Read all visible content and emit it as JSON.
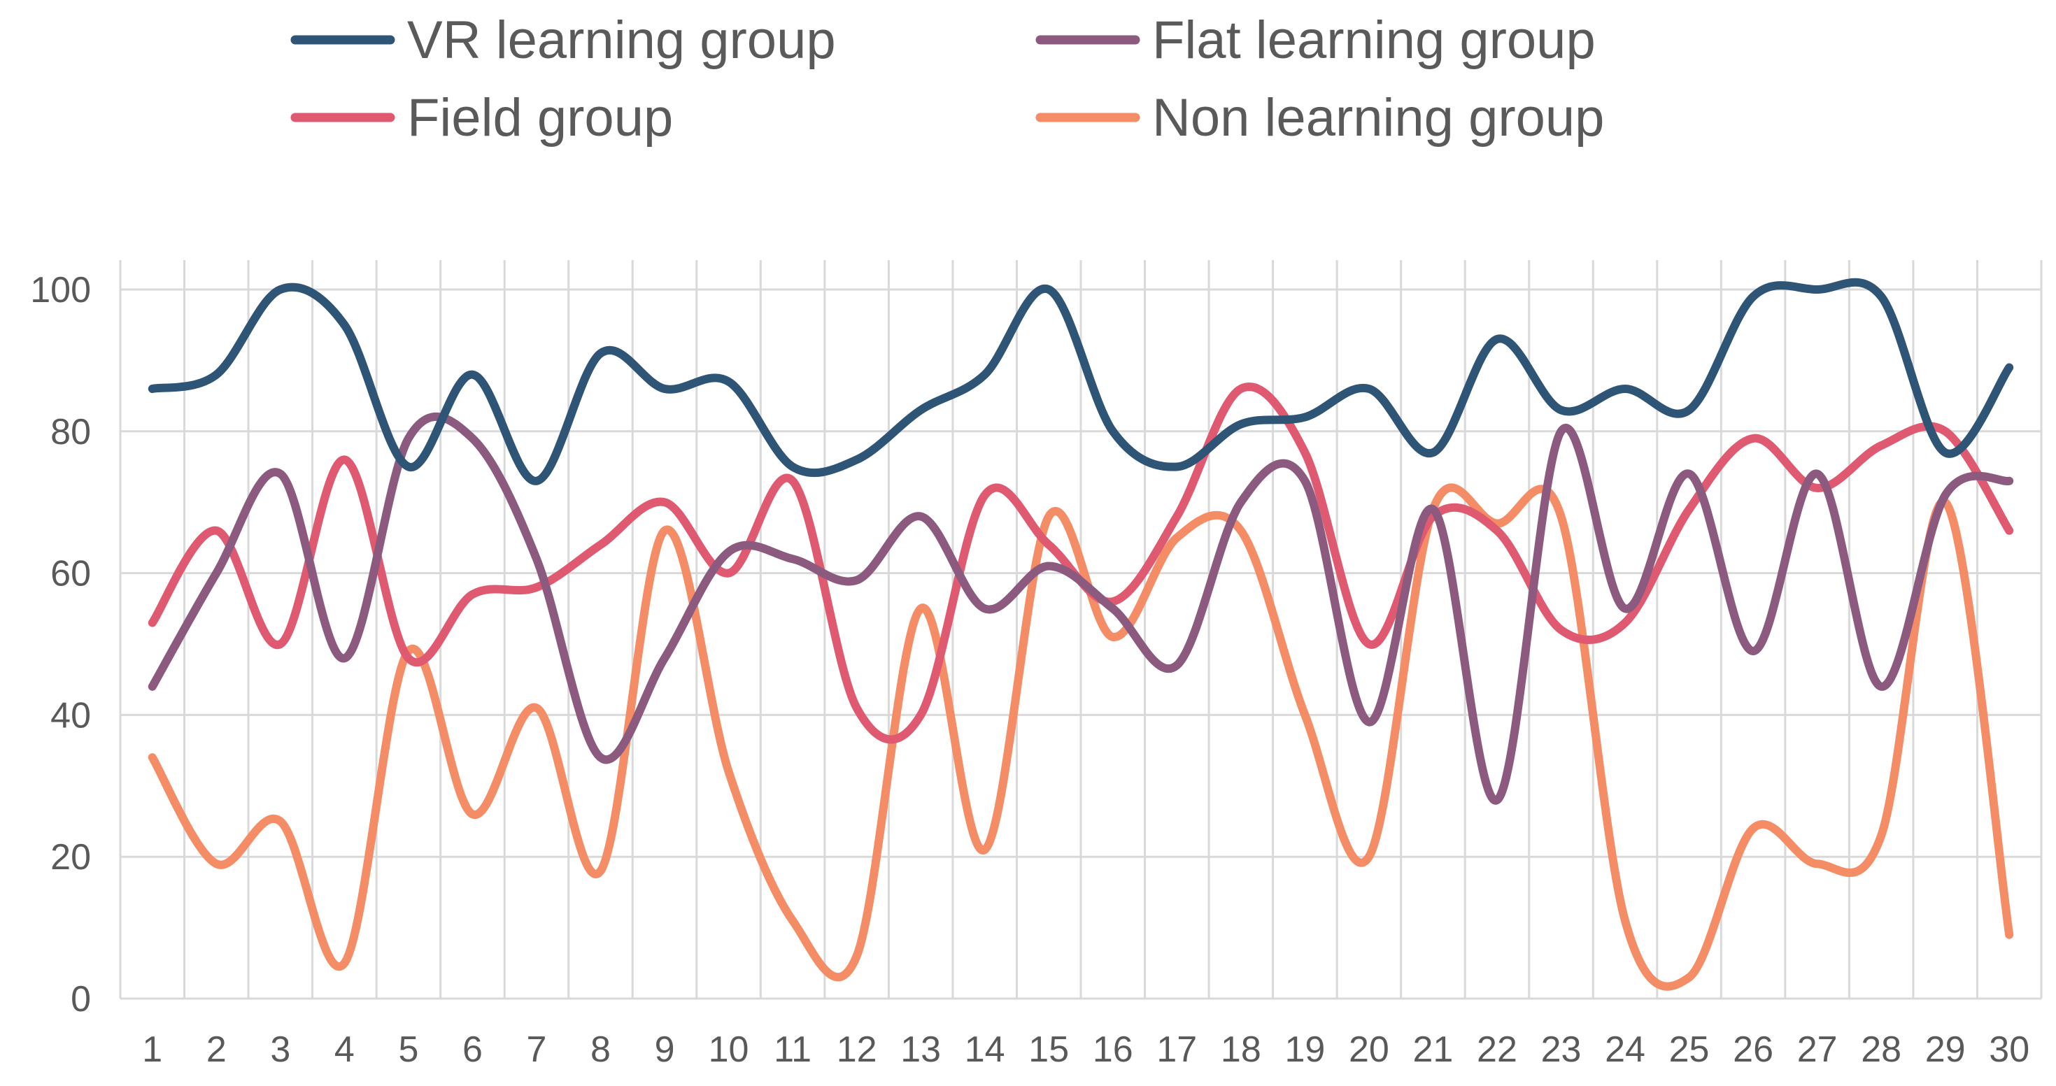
{
  "chart_data": {
    "type": "line",
    "title": "",
    "xlabel": "",
    "ylabel": "",
    "categories": [
      "1",
      "2",
      "3",
      "4",
      "5",
      "6",
      "7",
      "8",
      "9",
      "10",
      "11",
      "12",
      "13",
      "14",
      "15",
      "16",
      "17",
      "18",
      "19",
      "20",
      "21",
      "22",
      "23",
      "24",
      "25",
      "26",
      "27",
      "28",
      "29",
      "30"
    ],
    "ylim": [
      0,
      100
    ],
    "yticks": [
      0,
      20,
      40,
      60,
      80,
      100
    ],
    "grid": true,
    "smooth": true,
    "legend_position": "top",
    "series": [
      {
        "name": "VR learning group",
        "color": "#2e5476",
        "values": [
          86,
          88,
          100,
          95,
          75,
          88,
          73,
          91,
          86,
          87,
          75,
          76,
          83,
          88,
          100,
          80,
          75,
          81,
          82,
          86,
          77,
          93,
          83,
          86,
          83,
          99,
          100,
          99,
          77,
          89
        ]
      },
      {
        "name": "Flat learning group",
        "color": "#8c5a7e",
        "values": [
          44,
          60,
          74,
          48,
          79,
          79,
          62,
          34,
          48,
          63,
          62,
          59,
          68,
          55,
          61,
          55,
          47,
          70,
          73,
          39,
          69,
          28,
          80,
          55,
          74,
          49,
          74,
          44,
          71,
          73
        ]
      },
      {
        "name": "Field group",
        "color": "#df5a70",
        "values": [
          53,
          66,
          50,
          76,
          48,
          57,
          58,
          64,
          70,
          60,
          73,
          41,
          40,
          71,
          64,
          56,
          68,
          86,
          77,
          50,
          68,
          66,
          52,
          53,
          69,
          79,
          72,
          78,
          80,
          66
        ]
      },
      {
        "name": "Non learning group",
        "color": "#f48c66",
        "values": [
          34,
          19,
          25,
          5,
          49,
          26,
          41,
          18,
          66,
          32,
          11,
          6,
          55,
          21,
          68,
          51,
          65,
          66,
          40,
          20,
          69,
          67,
          68,
          11,
          3,
          24,
          19,
          23,
          70,
          9
        ]
      }
    ]
  }
}
